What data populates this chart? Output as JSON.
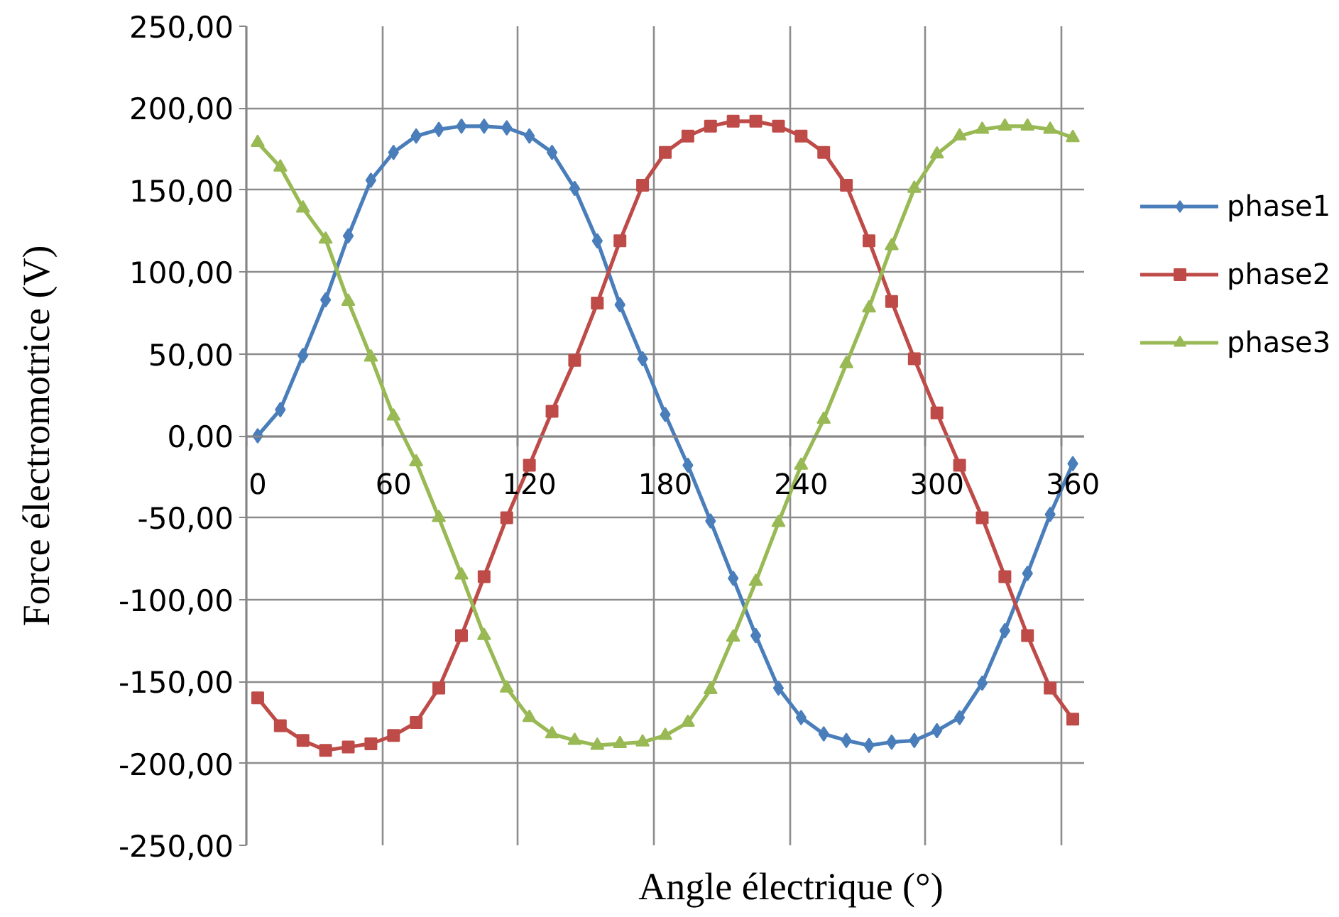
{
  "chart_data": {
    "type": "line",
    "xlabel": "Angle électrique (°)",
    "ylabel": "Force électromotrice (V)",
    "categories": [
      "0",
      null,
      null,
      null,
      null,
      null,
      "60",
      null,
      null,
      null,
      null,
      null,
      "120",
      null,
      null,
      null,
      null,
      null,
      "180",
      null,
      null,
      null,
      null,
      null,
      "240",
      null,
      null,
      null,
      null,
      null,
      "300",
      null,
      null,
      null,
      null,
      null,
      "360"
    ],
    "series": [
      {
        "name": "phase1",
        "color": "#4a7ebb",
        "marker": "diamond",
        "values": [
          0,
          16,
          49,
          83,
          122,
          156,
          173,
          183,
          187,
          189,
          189,
          188,
          183,
          173,
          151,
          119,
          80,
          47,
          13,
          -18,
          -52,
          -87,
          -122,
          -154,
          -172,
          -182,
          -186,
          -189,
          -187,
          -186,
          -180,
          -172,
          -151,
          -119,
          -84,
          -48,
          -17
        ]
      },
      {
        "name": "phase2",
        "color": "#be4b48",
        "marker": "square",
        "values": [
          -160,
          -177,
          -186,
          -192,
          -190,
          -188,
          -183,
          -175,
          -154,
          -122,
          -86,
          -50,
          -18,
          15,
          46,
          81,
          119,
          153,
          173,
          183,
          189,
          192,
          192,
          189,
          183,
          173,
          153,
          119,
          82,
          47,
          14,
          -18,
          -50,
          -86,
          -122,
          -154,
          -173
        ]
      },
      {
        "name": "phase3",
        "color": "#98b954",
        "marker": "triangle",
        "values": [
          179,
          164,
          139,
          120,
          82,
          48,
          12,
          -16,
          -50,
          -85,
          -122,
          -154,
          -172,
          -182,
          -186,
          -189,
          -188,
          -187,
          -183,
          -175,
          -155,
          -123,
          -89,
          -53,
          -18,
          10,
          44,
          78,
          116,
          151,
          172,
          183,
          187,
          189,
          189,
          187,
          182
        ]
      }
    ],
    "ylim": [
      -250,
      250
    ],
    "yticks": [
      {
        "value": -250,
        "label": "-250,00"
      },
      {
        "value": -200,
        "label": "-200,00"
      },
      {
        "value": -150,
        "label": "-150,00"
      },
      {
        "value": -100,
        "label": "-100,00"
      },
      {
        "value": -50,
        "label": "-50,00"
      },
      {
        "value": 0,
        "label": "0,00"
      },
      {
        "value": 50,
        "label": "50,00"
      },
      {
        "value": 100,
        "label": "100,00"
      },
      {
        "value": 150,
        "label": "150,00"
      },
      {
        "value": 200,
        "label": "200,00"
      },
      {
        "value": 250,
        "label": "250,00"
      }
    ],
    "grid": true,
    "legend": "right",
    "line_style": "solid"
  }
}
